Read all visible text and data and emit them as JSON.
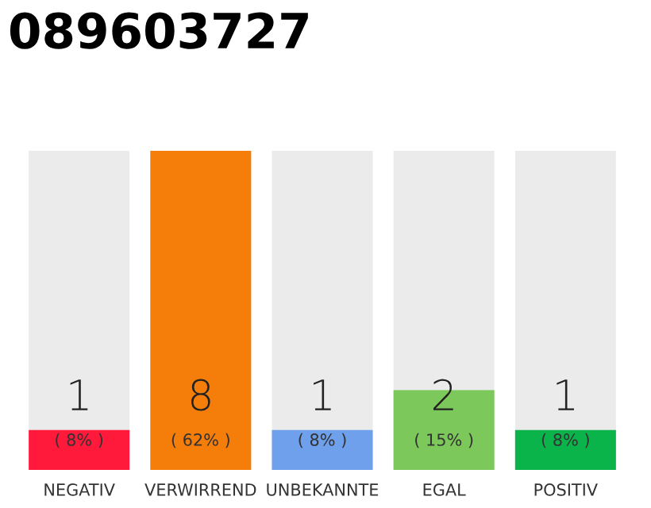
{
  "chart_data": {
    "type": "bar",
    "title": "089603727",
    "categories": [
      "NEGATIV",
      "VERWIRREND",
      "UNBEKANNTE",
      "EGAL",
      "POSITIV"
    ],
    "values": [
      1,
      8,
      1,
      2,
      1
    ],
    "colors": [
      "#ff1a3c",
      "#f57d0a",
      "#6ea0ec",
      "#7dc85a",
      "#0ab44a"
    ],
    "data_labels": true,
    "annotations": [
      "( 8% )",
      "( 62% )",
      "( 8% )",
      "( 15% )",
      "( 8% )"
    ],
    "grid": false
  }
}
